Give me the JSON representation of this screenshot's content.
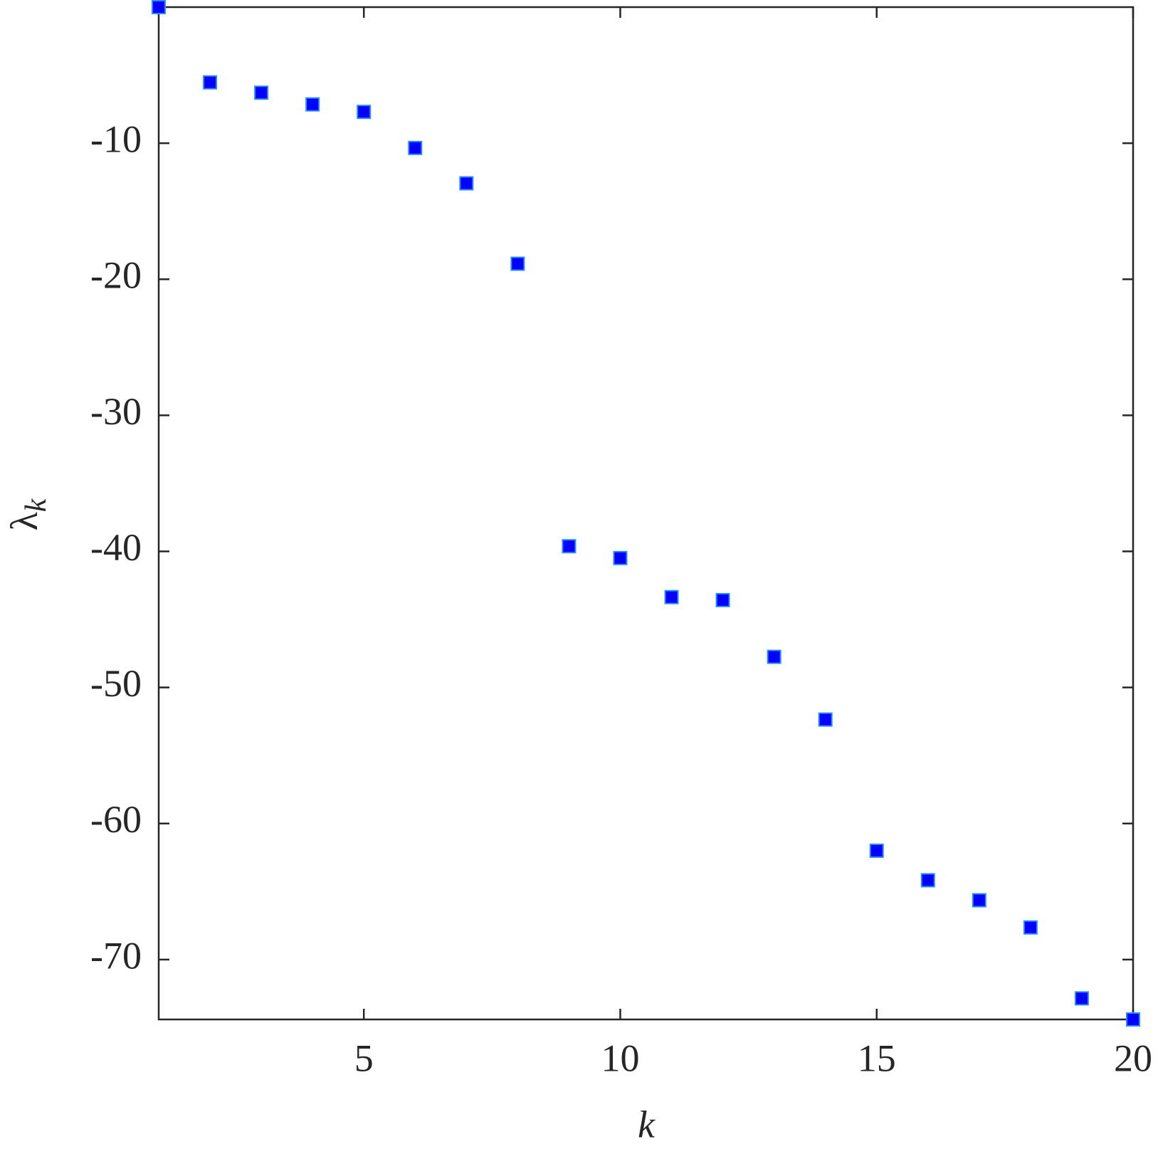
{
  "chart_data": {
    "type": "scatter",
    "xlabel": "k",
    "ylabel": "λ",
    "ylabel_subscript": "k",
    "x": [
      1,
      2,
      3,
      4,
      5,
      6,
      7,
      8,
      9,
      10,
      11,
      12,
      13,
      14,
      15,
      16,
      17,
      18,
      19,
      20
    ],
    "series": [
      {
        "color": "#0000ff",
        "edgecolor": "#2b8cff",
        "values": [
          0,
          -5.53,
          -6.29,
          -7.15,
          -7.7,
          -10.35,
          -12.95,
          -18.86,
          -39.62,
          -40.49,
          -43.36,
          -43.58,
          -47.75,
          -52.36,
          -62.0,
          -64.17,
          -65.64,
          -67.64,
          -72.85,
          -74.4
        ]
      }
    ],
    "xlim": [
      1,
      20
    ],
    "xticks": [
      5,
      10,
      15,
      20
    ],
    "ylim": [
      -74.4,
      0
    ],
    "yticks": [
      -70,
      -60,
      -50,
      -40,
      -30,
      -20,
      -10
    ],
    "grid": false
  }
}
